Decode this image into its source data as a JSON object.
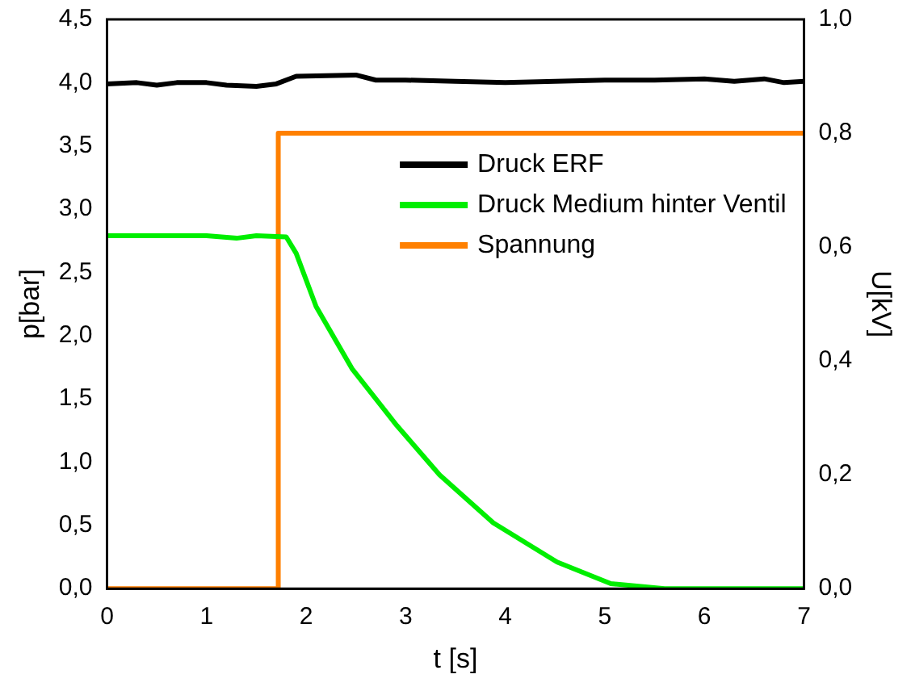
{
  "chart_data": {
    "type": "line",
    "xlabel": "t [s]",
    "ylabel": "p[bar]",
    "y2label": "U[kV]",
    "xlim": [
      0,
      7
    ],
    "xticks": [
      0,
      1,
      2,
      3,
      4,
      5,
      6,
      7
    ],
    "ylim": [
      0,
      4.5
    ],
    "yticks": [
      {
        "value": 0,
        "label": "0,0"
      },
      {
        "value": 0.5,
        "label": "0,5"
      },
      {
        "value": 1,
        "label": "1,0"
      },
      {
        "value": 1.5,
        "label": "1,5"
      },
      {
        "value": 2,
        "label": "2,0"
      },
      {
        "value": 2.5,
        "label": "2,5"
      },
      {
        "value": 3,
        "label": "3,0"
      },
      {
        "value": 3.5,
        "label": "3,5"
      },
      {
        "value": 4,
        "label": "4,0"
      },
      {
        "value": 4.5,
        "label": "4,5"
      }
    ],
    "y2lim": [
      0,
      1
    ],
    "y2ticks": [
      {
        "value": 0,
        "label": "0,0"
      },
      {
        "value": 0.2,
        "label": "0,2"
      },
      {
        "value": 0.4,
        "label": "0,4"
      },
      {
        "value": 0.6,
        "label": "0,6"
      },
      {
        "value": 0.8,
        "label": "0,8"
      },
      {
        "value": 1,
        "label": "1,0"
      }
    ],
    "grid": false,
    "legend": "top right",
    "marker": "none",
    "line_style": "solid",
    "series": [
      {
        "name": "Druck ERF",
        "color": "#000000",
        "x": [
          0,
          0.3,
          0.5,
          0.7,
          1,
          1.2,
          1.5,
          1.7,
          1.9,
          2.5,
          2.7,
          3,
          3.5,
          4,
          4.5,
          5,
          5.5,
          6,
          6.3,
          6.6,
          6.8,
          7
        ],
        "values": [
          3.99,
          4.0,
          3.98,
          4.0,
          4.0,
          3.98,
          3.97,
          3.99,
          4.05,
          4.06,
          4.02,
          4.02,
          4.01,
          4.0,
          4.01,
          4.02,
          4.02,
          4.03,
          4.01,
          4.03,
          4.0,
          4.01
        ]
      },
      {
        "name": "Druck Medium hinter Ventil",
        "color": "#00ee00",
        "x": [
          0,
          0.5,
          1,
          1.3,
          1.5,
          1.8,
          1.9,
          2.1,
          2.46,
          2.91,
          3.34,
          3.88,
          4.52,
          5.06,
          5.6,
          6,
          7
        ],
        "values": [
          2.79,
          2.79,
          2.79,
          2.77,
          2.79,
          2.78,
          2.65,
          2.23,
          1.74,
          1.29,
          0.9,
          0.52,
          0.21,
          0.04,
          0,
          0,
          0
        ]
      },
      {
        "name": "Spannung",
        "color": "#ff8000",
        "axis": "y2",
        "x": [
          0,
          1.72,
          1.72,
          7
        ],
        "values": [
          0,
          0,
          0.8,
          0.8
        ]
      }
    ]
  }
}
